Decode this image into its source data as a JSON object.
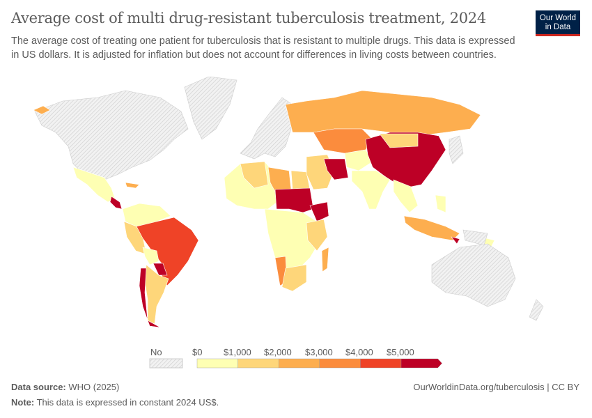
{
  "title": "Average cost of multi drug-resistant tuberculosis treatment, 2024",
  "subtitle": "The average cost of treating one patient for tuberculosis that is resistant to multiple drugs. This data is expressed in US dollars. It is adjusted for inflation but does not account for differences in living costs between countries.",
  "logo": {
    "line1": "Our World",
    "line2": "in Data"
  },
  "legend": {
    "no_data_label": "No data",
    "ticks": [
      "$0",
      "$1,000",
      "$2,000",
      "$3,000",
      "$4,000",
      "$5,000"
    ],
    "colors": [
      "#feffb3",
      "#fed67a",
      "#fdae4f",
      "#fb8c3d",
      "#ef4327",
      "#bd0026"
    ],
    "no_data_color": "#e0e0e0"
  },
  "footer": {
    "source_label": "Data source:",
    "source": "WHO (2025)",
    "url": "OurWorldinData.org/tuberculosis | CC BY",
    "note_label": "Note:",
    "note": "This data is expressed in constant 2024 US$."
  }
}
